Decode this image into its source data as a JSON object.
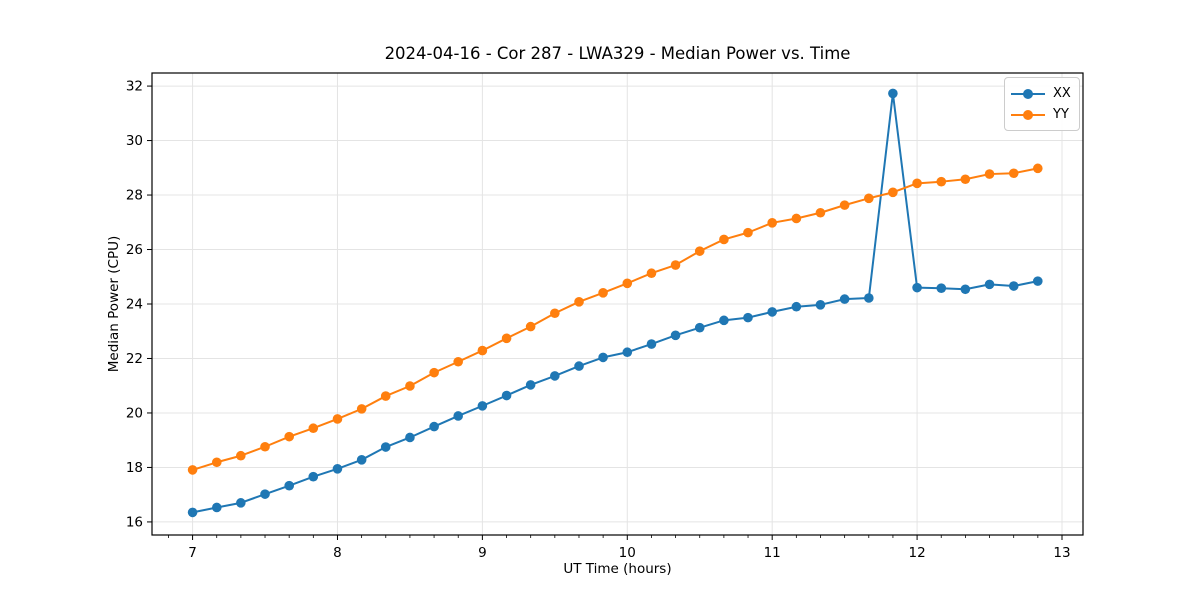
{
  "chart_data": {
    "type": "line",
    "title": "2024-04-16 - Cor 287 - LWA329 - Median Power vs. Time",
    "xlabel": "UT Time (hours)",
    "ylabel": "Median Power (CPU)",
    "xlim": [
      6.72,
      13.145
    ],
    "ylim": [
      15.52,
      32.48
    ],
    "x_ticks": [
      7,
      8,
      9,
      10,
      11,
      12,
      13
    ],
    "y_ticks": [
      16,
      18,
      20,
      22,
      24,
      26,
      28,
      30,
      32
    ],
    "x_minor_ticks_per_hour": 6,
    "grid": true,
    "grid_color": "#e4e4e4",
    "legend_position": "upper right",
    "x": [
      7.0,
      7.167,
      7.333,
      7.5,
      7.667,
      7.833,
      8.0,
      8.167,
      8.333,
      8.5,
      8.667,
      8.833,
      9.0,
      9.167,
      9.333,
      9.5,
      9.667,
      9.833,
      10.0,
      10.167,
      10.333,
      10.5,
      10.667,
      10.833,
      11.0,
      11.167,
      11.333,
      11.5,
      11.667,
      11.833,
      12.0,
      12.167,
      12.333,
      12.5,
      12.667,
      12.833
    ],
    "series": [
      {
        "name": "XX",
        "color": "#1f77b4",
        "values": [
          16.35,
          16.53,
          16.7,
          17.02,
          17.33,
          17.66,
          17.95,
          18.28,
          18.75,
          19.1,
          19.5,
          19.89,
          20.26,
          20.64,
          21.03,
          21.36,
          21.72,
          22.04,
          22.23,
          22.53,
          22.85,
          23.13,
          23.4,
          23.5,
          23.71,
          23.9,
          23.97,
          24.18,
          24.22,
          31.73,
          24.6,
          24.58,
          24.54,
          24.72,
          24.66,
          24.84
        ]
      },
      {
        "name": "YY",
        "color": "#ff7f0e",
        "values": [
          17.91,
          18.19,
          18.43,
          18.76,
          19.13,
          19.44,
          19.78,
          20.15,
          20.62,
          20.99,
          21.48,
          21.88,
          22.29,
          22.74,
          23.17,
          23.66,
          24.08,
          24.41,
          24.76,
          25.13,
          25.43,
          25.94,
          26.37,
          26.62,
          26.98,
          27.14,
          27.35,
          27.63,
          27.88,
          28.1,
          28.43,
          28.49,
          28.58,
          28.77,
          28.8,
          28.98
        ]
      }
    ]
  },
  "legend": {
    "items": [
      {
        "label": "XX",
        "color": "#1f77b4"
      },
      {
        "label": "YY",
        "color": "#ff7f0e"
      }
    ]
  }
}
